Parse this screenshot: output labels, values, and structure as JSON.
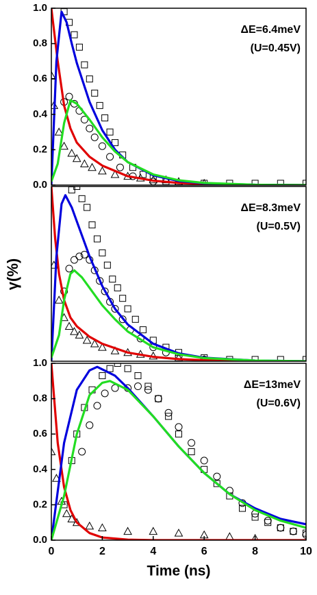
{
  "chart_data": [
    {
      "type": "line",
      "annotations": [
        "ΔE=6.4meV",
        "(U=0.45V)"
      ],
      "xlim": [
        0,
        10
      ],
      "ylim": [
        0,
        1
      ],
      "yticks": [
        {
          "value": 0,
          "label": "0.0"
        },
        0.2,
        0.4,
        0.6,
        0.8,
        {
          "value": 1,
          "label": "1.0"
        }
      ],
      "series": [
        {
          "style": "square",
          "color": "#000000",
          "x": [
            0.5,
            0.7,
            0.9,
            1.1,
            1.3,
            1.5,
            1.7,
            1.9,
            2.1,
            2.3,
            2.5,
            2.8,
            3.2,
            3.6,
            4,
            4.5,
            5,
            6,
            7,
            8,
            9,
            10
          ],
          "values": [
            0.98,
            0.92,
            0.85,
            0.78,
            0.68,
            0.6,
            0.52,
            0.45,
            0.38,
            0.3,
            0.24,
            0.17,
            0.1,
            0.06,
            0.04,
            0.02,
            0.01,
            0.01,
            0.01,
            0.01,
            0.01,
            0.01
          ]
        },
        {
          "style": "circle",
          "color": "#000000",
          "x": [
            0.5,
            0.7,
            0.9,
            1.1,
            1.3,
            1.5,
            1.7,
            2,
            2.3,
            2.7,
            3.2,
            4,
            5
          ],
          "values": [
            0.47,
            0.5,
            0.46,
            0.42,
            0.37,
            0.32,
            0.27,
            0.22,
            0.16,
            0.1,
            0.05,
            0.02,
            0.01
          ]
        },
        {
          "style": "triangle",
          "color": "#000000",
          "x": [
            0,
            0.1,
            0.3,
            0.5,
            0.8,
            1,
            1.3,
            1.6,
            2,
            2.5,
            3,
            3.5,
            4,
            4.5,
            5,
            6
          ],
          "values": [
            0.62,
            0.45,
            0.3,
            0.22,
            0.18,
            0.15,
            0.12,
            0.1,
            0.08,
            0.06,
            0.05,
            0.04,
            0.03,
            0.03,
            0.02,
            0.01
          ]
        },
        {
          "style": "line",
          "color": "#e00000",
          "x": [
            0,
            0.25,
            0.5,
            0.75,
            1,
            1.5,
            2,
            3,
            4,
            5,
            6,
            8,
            10
          ],
          "values": [
            1,
            0.7,
            0.45,
            0.32,
            0.24,
            0.16,
            0.11,
            0.05,
            0.025,
            0.012,
            0.005,
            0.001,
            0
          ]
        },
        {
          "style": "line",
          "color": "#0000dd",
          "x": [
            0,
            0.2,
            0.4,
            0.6,
            0.8,
            1,
            1.5,
            2,
            2.5,
            3,
            4,
            5,
            6,
            8,
            10
          ],
          "values": [
            0,
            0.7,
            0.98,
            0.92,
            0.8,
            0.69,
            0.47,
            0.31,
            0.2,
            0.13,
            0.055,
            0.023,
            0.01,
            0.002,
            0
          ]
        },
        {
          "style": "line",
          "color": "#22dd22",
          "x": [
            0,
            0.25,
            0.5,
            0.75,
            1,
            1.5,
            2,
            2.5,
            3,
            4,
            5,
            6,
            8,
            10
          ],
          "values": [
            0.02,
            0.12,
            0.35,
            0.48,
            0.46,
            0.37,
            0.27,
            0.19,
            0.13,
            0.06,
            0.027,
            0.012,
            0.002,
            0
          ]
        }
      ]
    },
    {
      "type": "line",
      "ylabel": "γ(%)",
      "annotations": [
        "ΔE=8.3meV",
        "(U=0.5V)"
      ],
      "xlim": [
        0,
        10
      ],
      "ylim": [
        0,
        1
      ],
      "series": [
        {
          "style": "square",
          "color": "#000000",
          "x": [
            0.8,
            1,
            1.2,
            1.4,
            1.6,
            1.8,
            2,
            2.2,
            2.4,
            2.6,
            2.8,
            3,
            3.3,
            3.6,
            4,
            4.5,
            5,
            6,
            7,
            8,
            9,
            10
          ],
          "values": [
            0.98,
            1,
            0.93,
            0.88,
            0.78,
            0.7,
            0.62,
            0.55,
            0.47,
            0.42,
            0.36,
            0.3,
            0.24,
            0.18,
            0.12,
            0.08,
            0.05,
            0.02,
            0.01,
            0.01,
            0.01,
            0.01
          ]
        },
        {
          "style": "circle",
          "color": "#000000",
          "x": [
            0.5,
            0.7,
            0.9,
            1.1,
            1.3,
            1.5,
            1.7,
            1.9,
            2.1,
            2.3,
            2.5,
            2.8,
            3.1,
            3.5,
            4,
            4.5,
            5,
            6
          ],
          "values": [
            0.4,
            0.53,
            0.58,
            0.6,
            0.61,
            0.58,
            0.52,
            0.46,
            0.4,
            0.34,
            0.3,
            0.24,
            0.18,
            0.13,
            0.08,
            0.05,
            0.03,
            0.01
          ]
        },
        {
          "style": "triangle",
          "color": "#000000",
          "x": [
            0.1,
            0.3,
            0.5,
            0.7,
            0.9,
            1.1,
            1.4,
            1.7,
            2,
            2.5,
            3,
            3.5,
            4,
            5,
            6
          ],
          "values": [
            0.55,
            0.35,
            0.25,
            0.2,
            0.17,
            0.15,
            0.12,
            0.1,
            0.08,
            0.06,
            0.05,
            0.04,
            0.03,
            0.02,
            0.01
          ]
        },
        {
          "style": "line",
          "color": "#e00000",
          "x": [
            0,
            0.15,
            0.3,
            0.5,
            0.75,
            1,
            1.5,
            2,
            3,
            4,
            5,
            6,
            8,
            10
          ],
          "values": [
            1,
            0.7,
            0.5,
            0.35,
            0.25,
            0.2,
            0.14,
            0.1,
            0.05,
            0.025,
            0.012,
            0.006,
            0.001,
            0
          ]
        },
        {
          "style": "line",
          "color": "#0000dd",
          "x": [
            0,
            0.2,
            0.4,
            0.55,
            0.8,
            1,
            1.5,
            2,
            2.5,
            3,
            4,
            5,
            6,
            8,
            10
          ],
          "values": [
            0,
            0.6,
            0.9,
            0.95,
            0.88,
            0.8,
            0.6,
            0.43,
            0.3,
            0.21,
            0.1,
            0.045,
            0.02,
            0.004,
            0
          ]
        },
        {
          "style": "line",
          "color": "#22dd22",
          "x": [
            0,
            0.3,
            0.5,
            0.75,
            0.9,
            1.2,
            1.5,
            2,
            2.5,
            3,
            4,
            5,
            6,
            8,
            10
          ],
          "values": [
            0.02,
            0.15,
            0.35,
            0.5,
            0.52,
            0.48,
            0.42,
            0.32,
            0.24,
            0.17,
            0.08,
            0.04,
            0.018,
            0.004,
            0
          ]
        }
      ]
    },
    {
      "type": "line",
      "xlabel": "Time (ns)",
      "annotations": [
        "ΔE=13meV",
        "(U=0.6V)"
      ],
      "xlim": [
        0,
        10
      ],
      "ylim": [
        0,
        1
      ],
      "xticks": [
        0,
        2,
        4,
        6,
        8,
        10
      ],
      "yticks": [
        {
          "value": 0,
          "label": "0.0"
        },
        0.2,
        0.4,
        0.6,
        0.8,
        {
          "value": 1,
          "label": "1.0"
        }
      ],
      "series": [
        {
          "style": "square",
          "color": "#000000",
          "x": [
            0.5,
            0.8,
            1,
            1.3,
            1.6,
            2,
            2.3,
            2.6,
            3,
            3.4,
            3.8,
            4.2,
            4.6,
            5,
            5.5,
            6,
            6.5,
            7,
            7.5,
            8,
            8.5,
            9,
            9.5,
            10
          ],
          "values": [
            0.2,
            0.45,
            0.6,
            0.75,
            0.85,
            0.93,
            0.97,
            1,
            0.97,
            0.93,
            0.87,
            0.8,
            0.7,
            0.6,
            0.5,
            0.4,
            0.32,
            0.25,
            0.18,
            0.13,
            0.1,
            0.07,
            0.05,
            0.04
          ]
        },
        {
          "style": "circle",
          "color": "#000000",
          "x": [
            1.2,
            1.5,
            1.8,
            2.1,
            2.5,
            3,
            3.4,
            3.8,
            4.2,
            4.6,
            5,
            5.5,
            6,
            6.5,
            7,
            7.5,
            8,
            8.5,
            9,
            9.5,
            10
          ],
          "values": [
            0.5,
            0.65,
            0.76,
            0.83,
            0.86,
            0.86,
            0.87,
            0.85,
            0.8,
            0.72,
            0.64,
            0.55,
            0.45,
            0.36,
            0.28,
            0.21,
            0.15,
            0.11,
            0.07,
            0.05,
            0.03
          ]
        },
        {
          "style": "triangle",
          "color": "#000000",
          "x": [
            0,
            0.2,
            0.4,
            0.6,
            0.8,
            1,
            1.5,
            2,
            3,
            4,
            5,
            6,
            7,
            8
          ],
          "values": [
            0.5,
            0.35,
            0.22,
            0.15,
            0.12,
            0.1,
            0.08,
            0.07,
            0.05,
            0.05,
            0.04,
            0.03,
            0.02,
            0.01
          ]
        },
        {
          "style": "line",
          "color": "#e00000",
          "x": [
            0,
            0.25,
            0.5,
            0.75,
            1,
            1.5,
            2,
            3,
            4,
            10
          ],
          "values": [
            1,
            0.55,
            0.3,
            0.17,
            0.1,
            0.04,
            0.015,
            0.003,
            0,
            0
          ]
        },
        {
          "style": "line",
          "color": "#0000dd",
          "x": [
            0,
            0.5,
            1,
            1.5,
            1.8,
            2.5,
            3,
            4,
            5,
            6,
            7,
            8,
            9,
            10
          ],
          "values": [
            0,
            0.55,
            0.85,
            0.96,
            0.98,
            0.93,
            0.86,
            0.7,
            0.53,
            0.38,
            0.26,
            0.18,
            0.12,
            0.09
          ]
        },
        {
          "style": "line",
          "color": "#22dd22",
          "x": [
            0,
            0.5,
            1,
            1.5,
            2,
            2.3,
            3,
            4,
            5,
            6,
            7,
            8,
            9,
            10
          ],
          "values": [
            0,
            0.25,
            0.6,
            0.82,
            0.89,
            0.9,
            0.85,
            0.7,
            0.53,
            0.38,
            0.26,
            0.17,
            0.11,
            0.07
          ]
        }
      ]
    }
  ]
}
